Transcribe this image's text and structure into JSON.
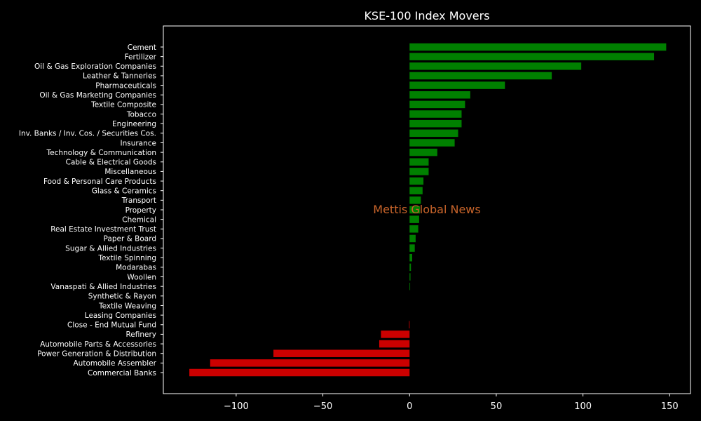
{
  "chart_data": {
    "type": "bar",
    "orientation": "horizontal",
    "title": "KSE-100 Index Movers",
    "xlabel": "",
    "ylabel": "",
    "xlim": [
      -142,
      162
    ],
    "xticks": [
      -100,
      -50,
      0,
      50,
      100,
      150
    ],
    "xtick_labels": [
      "−100",
      "−50",
      "0",
      "50",
      "100",
      "150"
    ],
    "grid": false,
    "positive_color": "#008000",
    "negative_color": "#cc0000",
    "watermark": "Mettis Global News",
    "categories": [
      "Cement",
      "Fertilizer",
      "Oil & Gas Exploration Companies",
      "Leather & Tanneries",
      "Pharmaceuticals",
      "Oil & Gas Marketing Companies",
      "Textile Composite",
      "Tobacco",
      "Engineering",
      "Inv. Banks / Inv. Cos. / Securities Cos.",
      "Insurance",
      "Technology & Communication",
      "Cable & Electrical Goods",
      "Miscellaneous",
      "Food & Personal Care Products",
      "Glass & Ceramics",
      "Transport",
      "Property",
      "Chemical",
      "Real Estate Investment Trust",
      "Paper & Board",
      "Sugar & Allied Industries",
      "Textile Spinning",
      "Modarabas",
      "Woollen",
      "Vanaspati & Allied Industries",
      "Synthetic & Rayon",
      "Textile Weaving",
      "Leasing Companies",
      "Close - End Mutual Fund",
      "Refinery",
      "Automobile Parts & Accessories",
      "Power Generation & Distribution",
      "Automobile Assembler",
      "Commercial Banks"
    ],
    "values": [
      148,
      141,
      99,
      82,
      55,
      35,
      32,
      30,
      30,
      28,
      26,
      16,
      11,
      11,
      8,
      7.5,
      6.5,
      6,
      5.5,
      5,
      3.5,
      3,
      1.5,
      0.8,
      0.5,
      0.3,
      0,
      0,
      0,
      -0.3,
      -16.5,
      -17.5,
      -78.5,
      -115,
      -127
    ]
  }
}
